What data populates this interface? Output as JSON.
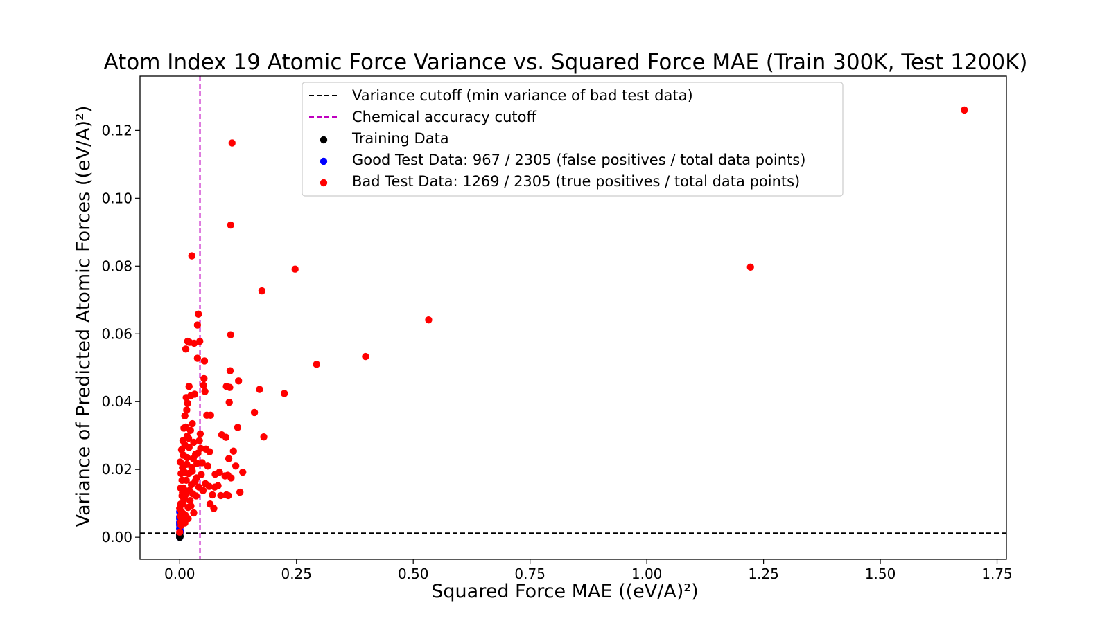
{
  "chart_data": {
    "type": "scatter",
    "title": "Atom Index 19 Atomic Force Variance vs. Squared Force MAE (Train 300K, Test 1200K)",
    "xlabel": "Squared Force MAE ((eV/A)²)",
    "ylabel": "Variance of Predicted Atomic Forces ((eV/A)²)",
    "xlim": [
      -0.085,
      1.77
    ],
    "ylim": [
      -0.0065,
      0.136
    ],
    "xticks": [
      0.0,
      0.25,
      0.5,
      0.75,
      1.0,
      1.25,
      1.5,
      1.75
    ],
    "xtick_labels": [
      "0.00",
      "0.25",
      "0.50",
      "0.75",
      "1.00",
      "1.25",
      "1.50",
      "1.75"
    ],
    "yticks": [
      0.0,
      0.02,
      0.04,
      0.06,
      0.08,
      0.1,
      0.12
    ],
    "ytick_labels": [
      "0.00",
      "0.02",
      "0.04",
      "0.06",
      "0.08",
      "0.10",
      "0.12"
    ],
    "grid": false,
    "legend_placement": "top-center",
    "reference_lines": [
      {
        "name": "Variance cutoff (min variance of bad test data)",
        "orientation": "horizontal",
        "value": 0.0012,
        "color": "#000000",
        "style": "dashed"
      },
      {
        "name": "Chemical accuracy cutoff",
        "orientation": "vertical",
        "value": 0.0434,
        "color": "#bf00bf",
        "style": "dashed"
      }
    ],
    "series": [
      {
        "name": "Training Data",
        "color": "#000000",
        "points": [
          [
            0.0,
            0.0
          ],
          [
            0.0,
            0.0005
          ],
          [
            0.001,
            0.0003
          ],
          [
            0.0,
            0.001
          ]
        ]
      },
      {
        "name": "Good Test Data: 967 / 2305 (false positives / total data points)",
        "color": "#0000ff",
        "points": [
          [
            0.0,
            0.0
          ],
          [
            0.0,
            0.0008
          ],
          [
            0.001,
            0.0015
          ],
          [
            0.0,
            0.0025
          ],
          [
            0.001,
            0.003
          ],
          [
            0.0,
            0.004
          ],
          [
            0.001,
            0.005
          ],
          [
            0.0,
            0.006
          ],
          [
            0.001,
            0.007
          ],
          [
            0.0,
            0.0075
          ],
          [
            0.0,
            0.0035
          ],
          [
            0.001,
            0.002
          ],
          [
            0.0,
            0.0045
          ],
          [
            0.0,
            0.0055
          ],
          [
            0.001,
            0.0065
          ]
        ]
      },
      {
        "name": "Bad Test Data: 1269 / 2305 (true positives / total data points)",
        "color": "#ff0000",
        "points": [
          [
            1.68,
            0.126
          ],
          [
            1.222,
            0.0797
          ],
          [
            0.533,
            0.0641
          ],
          [
            0.398,
            0.0533
          ],
          [
            0.293,
            0.051
          ],
          [
            0.247,
            0.0791
          ],
          [
            0.224,
            0.0424
          ],
          [
            0.18,
            0.0296
          ],
          [
            0.176,
            0.0727
          ],
          [
            0.171,
            0.0436
          ],
          [
            0.16,
            0.0368
          ],
          [
            0.135,
            0.0192
          ],
          [
            0.129,
            0.0133
          ],
          [
            0.126,
            0.0461
          ],
          [
            0.124,
            0.0324
          ],
          [
            0.12,
            0.021
          ],
          [
            0.115,
            0.0254
          ],
          [
            0.112,
            0.1163
          ],
          [
            0.11,
            0.0175
          ],
          [
            0.109,
            0.0921
          ],
          [
            0.109,
            0.0597
          ],
          [
            0.108,
            0.0491
          ],
          [
            0.107,
            0.0442
          ],
          [
            0.106,
            0.0398
          ],
          [
            0.105,
            0.0232
          ],
          [
            0.104,
            0.0123
          ],
          [
            0.103,
            0.0183
          ],
          [
            0.1,
            0.0445
          ],
          [
            0.099,
            0.0295
          ],
          [
            0.097,
            0.0181
          ],
          [
            0.09,
            0.0302
          ],
          [
            0.088,
            0.0123
          ],
          [
            0.085,
            0.0192
          ],
          [
            0.082,
            0.0152
          ],
          [
            0.076,
            0.0186
          ],
          [
            0.073,
            0.0085
          ],
          [
            0.07,
            0.0125
          ],
          [
            0.066,
            0.036
          ],
          [
            0.064,
            0.0252
          ],
          [
            0.063,
            0.015
          ],
          [
            0.06,
            0.021
          ],
          [
            0.058,
            0.036
          ],
          [
            0.056,
            0.026
          ],
          [
            0.054,
            0.043
          ],
          [
            0.053,
            0.052
          ],
          [
            0.052,
            0.0468
          ],
          [
            0.051,
            0.0448
          ],
          [
            0.05,
            0.0138
          ],
          [
            0.048,
            0.022
          ],
          [
            0.046,
            0.0185
          ],
          [
            0.044,
            0.0305
          ],
          [
            0.043,
            0.0578
          ],
          [
            0.042,
            0.0285
          ],
          [
            0.041,
            0.0148
          ],
          [
            0.04,
            0.0658
          ],
          [
            0.039,
            0.0248
          ],
          [
            0.038,
            0.0626
          ],
          [
            0.038,
            0.0528
          ],
          [
            0.037,
            0.0218
          ],
          [
            0.036,
            0.0175
          ],
          [
            0.035,
            0.0122
          ],
          [
            0.033,
            0.0165
          ],
          [
            0.032,
            0.0422
          ],
          [
            0.031,
            0.0572
          ],
          [
            0.03,
            0.028
          ],
          [
            0.029,
            0.0232
          ],
          [
            0.028,
            0.0128
          ],
          [
            0.027,
            0.0335
          ],
          [
            0.026,
            0.083
          ],
          [
            0.026,
            0.0205
          ],
          [
            0.025,
            0.0155
          ],
          [
            0.024,
            0.0418
          ],
          [
            0.023,
            0.0315
          ],
          [
            0.022,
            0.0108
          ],
          [
            0.021,
            0.0575
          ],
          [
            0.02,
            0.0445
          ],
          [
            0.02,
            0.0265
          ],
          [
            0.019,
            0.0188
          ],
          [
            0.018,
            0.0088
          ],
          [
            0.017,
            0.0578
          ],
          [
            0.017,
            0.0395
          ],
          [
            0.016,
            0.0298
          ],
          [
            0.015,
            0.0375
          ],
          [
            0.015,
            0.0215
          ],
          [
            0.014,
            0.0412
          ],
          [
            0.013,
            0.0555
          ],
          [
            0.013,
            0.0325
          ],
          [
            0.012,
            0.0125
          ],
          [
            0.011,
            0.0358
          ],
          [
            0.011,
            0.0272
          ],
          [
            0.01,
            0.0192
          ],
          [
            0.009,
            0.0322
          ],
          [
            0.009,
            0.0068
          ],
          [
            0.008,
            0.0242
          ],
          [
            0.008,
            0.0145
          ],
          [
            0.007,
            0.0285
          ],
          [
            0.007,
            0.0098
          ],
          [
            0.006,
            0.0205
          ],
          [
            0.006,
            0.0052
          ],
          [
            0.005,
            0.0168
          ],
          [
            0.005,
            0.0122
          ],
          [
            0.004,
            0.0258
          ],
          [
            0.004,
            0.0075
          ],
          [
            0.003,
            0.0188
          ],
          [
            0.003,
            0.0035
          ],
          [
            0.002,
            0.0145
          ],
          [
            0.002,
            0.0098
          ],
          [
            0.001,
            0.0062
          ],
          [
            0.001,
            0.0222
          ],
          [
            0.0,
            0.0015
          ],
          [
            0.0,
            0.0085
          ],
          [
            0.002,
            0.0045
          ],
          [
            0.012,
            0.0065
          ],
          [
            0.018,
            0.0055
          ],
          [
            0.024,
            0.0092
          ],
          [
            0.03,
            0.0072
          ],
          [
            0.016,
            0.0235
          ],
          [
            0.021,
            0.0138
          ],
          [
            0.034,
            0.0245
          ],
          [
            0.045,
            0.0262
          ],
          [
            0.055,
            0.0158
          ],
          [
            0.065,
            0.0098
          ],
          [
            0.075,
            0.0148
          ],
          [
            0.1,
            0.0125
          ],
          [
            0.014,
            0.0168
          ],
          [
            0.009,
            0.0112
          ],
          [
            0.019,
            0.0292
          ],
          [
            0.027,
            0.0195
          ],
          [
            0.011,
            0.0042
          ],
          [
            0.006,
            0.0132
          ]
        ]
      }
    ]
  }
}
